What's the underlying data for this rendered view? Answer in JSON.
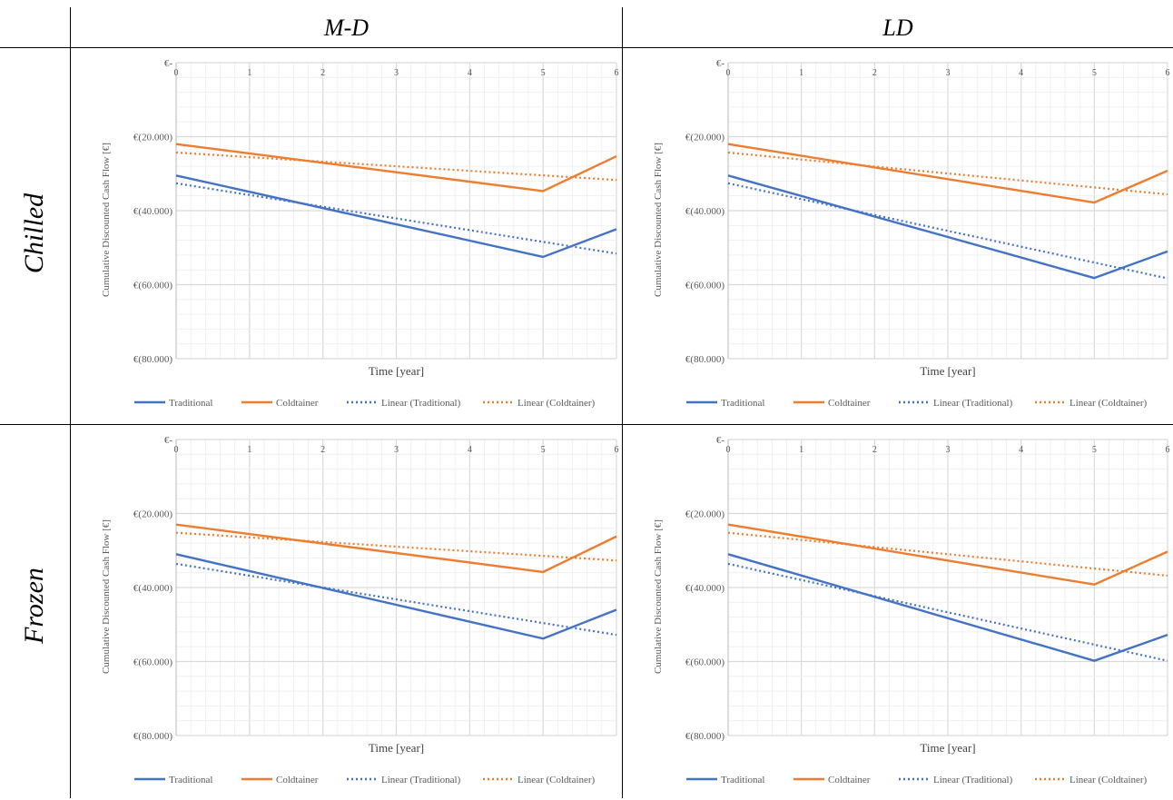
{
  "table": {
    "columns": [
      "M-D",
      "LD"
    ],
    "rows": [
      "Chilled",
      "Frozen"
    ]
  },
  "colors": {
    "traditional": "#4472c4",
    "coldtainer": "#ed7d31",
    "grid_major": "#d9d9d9",
    "grid_minor": "#ededed"
  },
  "chart_data": [
    {
      "type": "line",
      "panel": "Chilled / M-D",
      "xlabel": "Time [year]",
      "ylabel": "Cumulative Discounted Cash Flow [€]",
      "x": [
        0,
        1,
        2,
        3,
        4,
        5,
        6
      ],
      "x_ticks": [
        "0",
        "1",
        "2",
        "3",
        "4",
        "5",
        "6"
      ],
      "xlim": [
        0,
        6
      ],
      "ylim": [
        -80000,
        0
      ],
      "y_ticks": [
        0,
        -20000,
        -40000,
        -60000,
        -80000
      ],
      "y_tick_labels": [
        "€-",
        "€(20.000)",
        "€(40.000)",
        "€(60.000)",
        "€(80.000)"
      ],
      "grid": true,
      "legend": "bottom",
      "series": [
        {
          "name": "Traditional",
          "style": "solid",
          "color_key": "traditional",
          "x": [
            0,
            5,
            6
          ],
          "values": [
            -30500,
            -52500,
            -45000
          ]
        },
        {
          "name": "Coldtainer",
          "style": "solid",
          "color_key": "coldtainer",
          "x": [
            0,
            5,
            6
          ],
          "values": [
            -22000,
            -34700,
            -25300
          ]
        },
        {
          "name": "Linear (Traditional)",
          "style": "dotted",
          "color_key": "traditional",
          "x": [
            0,
            6
          ],
          "values": [
            -32600,
            -51600
          ]
        },
        {
          "name": "Linear (Coldtainer)",
          "style": "dotted",
          "color_key": "coldtainer",
          "x": [
            0,
            6
          ],
          "values": [
            -24300,
            -31700
          ]
        }
      ]
    },
    {
      "type": "line",
      "panel": "Chilled / LD",
      "xlabel": "Time [year]",
      "ylabel": "Cumulative Discounted Cash Flow [€]",
      "x": [
        0,
        1,
        2,
        3,
        4,
        5,
        6
      ],
      "x_ticks": [
        "0",
        "1",
        "2",
        "3",
        "4",
        "5",
        "6"
      ],
      "xlim": [
        0,
        6
      ],
      "ylim": [
        -80000,
        0
      ],
      "y_ticks": [
        0,
        -20000,
        -40000,
        -60000,
        -80000
      ],
      "y_tick_labels": [
        "€-",
        "€(20.000)",
        "€(40.000)",
        "€(60.000)",
        "€(80.000)"
      ],
      "grid": true,
      "legend": "bottom",
      "series": [
        {
          "name": "Traditional",
          "style": "solid",
          "color_key": "traditional",
          "x": [
            0,
            5,
            6
          ],
          "values": [
            -30500,
            -58200,
            -51000
          ]
        },
        {
          "name": "Coldtainer",
          "style": "solid",
          "color_key": "coldtainer",
          "x": [
            0,
            5,
            6
          ],
          "values": [
            -22000,
            -37800,
            -29200
          ]
        },
        {
          "name": "Linear (Traditional)",
          "style": "dotted",
          "color_key": "traditional",
          "x": [
            0,
            6
          ],
          "values": [
            -32600,
            -58300
          ]
        },
        {
          "name": "Linear (Coldtainer)",
          "style": "dotted",
          "color_key": "coldtainer",
          "x": [
            0,
            6
          ],
          "values": [
            -24300,
            -35600
          ]
        }
      ]
    },
    {
      "type": "line",
      "panel": "Frozen / M-D",
      "xlabel": "Time [year]",
      "ylabel": "Cumulative Discounted Cash Flow [€]",
      "x": [
        0,
        1,
        2,
        3,
        4,
        5,
        6
      ],
      "x_ticks": [
        "0",
        "1",
        "2",
        "3",
        "4",
        "5",
        "6"
      ],
      "xlim": [
        0,
        6
      ],
      "ylim": [
        -80000,
        0
      ],
      "y_ticks": [
        0,
        -20000,
        -40000,
        -60000,
        -80000
      ],
      "y_tick_labels": [
        "€-",
        "€(20.000)",
        "€(40.000)",
        "€(60.000)",
        "€(80.000)"
      ],
      "grid": true,
      "legend": "bottom",
      "series": [
        {
          "name": "Traditional",
          "style": "solid",
          "color_key": "traditional",
          "x": [
            0,
            5,
            6
          ],
          "values": [
            -31000,
            -53800,
            -46000
          ]
        },
        {
          "name": "Coldtainer",
          "style": "solid",
          "color_key": "coldtainer",
          "x": [
            0,
            5,
            6
          ],
          "values": [
            -23000,
            -35800,
            -26200
          ]
        },
        {
          "name": "Linear (Traditional)",
          "style": "dotted",
          "color_key": "traditional",
          "x": [
            0,
            6
          ],
          "values": [
            -33600,
            -52800
          ]
        },
        {
          "name": "Linear (Coldtainer)",
          "style": "dotted",
          "color_key": "coldtainer",
          "x": [
            0,
            6
          ],
          "values": [
            -25200,
            -32700
          ]
        }
      ]
    },
    {
      "type": "line",
      "panel": "Frozen / LD",
      "xlabel": "Time [year]",
      "ylabel": "Cumulative Discounted Cash Flow [€]",
      "x": [
        0,
        1,
        2,
        3,
        4,
        5,
        6
      ],
      "x_ticks": [
        "0",
        "1",
        "2",
        "3",
        "4",
        "5",
        "6"
      ],
      "xlim": [
        0,
        6
      ],
      "ylim": [
        -80000,
        0
      ],
      "y_ticks": [
        0,
        -20000,
        -40000,
        -60000,
        -80000
      ],
      "y_tick_labels": [
        "€-",
        "€(20.000)",
        "€(40.000)",
        "€(60.000)",
        "€(80.000)"
      ],
      "grid": true,
      "legend": "bottom",
      "series": [
        {
          "name": "Traditional",
          "style": "solid",
          "color_key": "traditional",
          "x": [
            0,
            5,
            6
          ],
          "values": [
            -31000,
            -59800,
            -52800
          ]
        },
        {
          "name": "Coldtainer",
          "style": "solid",
          "color_key": "coldtainer",
          "x": [
            0,
            5,
            6
          ],
          "values": [
            -23000,
            -39200,
            -30300
          ]
        },
        {
          "name": "Linear (Traditional)",
          "style": "dotted",
          "color_key": "traditional",
          "x": [
            0,
            6
          ],
          "values": [
            -33600,
            -59800
          ]
        },
        {
          "name": "Linear (Coldtainer)",
          "style": "dotted",
          "color_key": "coldtainer",
          "x": [
            0,
            6
          ],
          "values": [
            -25200,
            -36800
          ]
        }
      ]
    }
  ]
}
